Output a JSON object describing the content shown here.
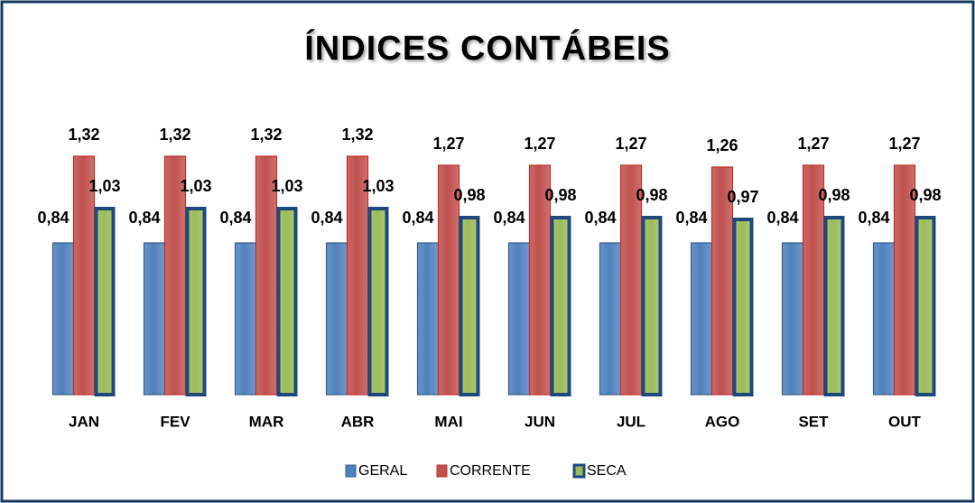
{
  "chart_data": {
    "type": "bar",
    "title": "ÍNDICES CONTÁBEIS",
    "categories": [
      "JAN",
      "FEV",
      "MAR",
      "ABR",
      "MAI",
      "JUN",
      "JUL",
      "AGO",
      "SET",
      "OUT"
    ],
    "series": [
      {
        "name": "GERAL",
        "color": "#4f81bd",
        "edgecolor": "#385d8a",
        "values": [
          0.84,
          0.84,
          0.84,
          0.84,
          0.84,
          0.84,
          0.84,
          0.84,
          0.84,
          0.84
        ],
        "value_labels": [
          "0,84",
          "0,84",
          "0,84",
          "0,84",
          "0,84",
          "0,84",
          "0,84",
          "0,84",
          "0,84",
          "0,84"
        ]
      },
      {
        "name": "CORRENTE",
        "color": "#c0504d",
        "edgecolor": "#c0302d",
        "values": [
          1.32,
          1.32,
          1.32,
          1.32,
          1.27,
          1.27,
          1.27,
          1.26,
          1.27,
          1.27
        ],
        "value_labels": [
          "1,32",
          "1,32",
          "1,32",
          "1,32",
          "1,27",
          "1,27",
          "1,27",
          "1,26",
          "1,27",
          "1,27"
        ]
      },
      {
        "name": "SECA",
        "color": "#9bbb59",
        "edgecolor": "#1f497d",
        "values": [
          1.03,
          1.03,
          1.03,
          1.03,
          0.98,
          0.98,
          0.98,
          0.97,
          0.98,
          0.98
        ],
        "value_labels": [
          "1,03",
          "1,03",
          "1,03",
          "1,03",
          "0,98",
          "0,98",
          "0,98",
          "0,97",
          "0,98",
          "0,98"
        ]
      }
    ],
    "legend": "bottom"
  }
}
